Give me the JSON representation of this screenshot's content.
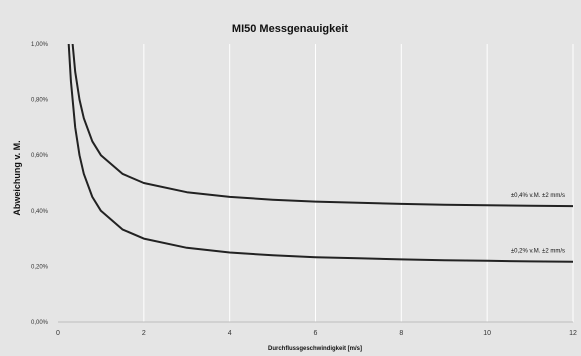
{
  "chart_data": {
    "type": "line",
    "title": "MI50 Messgenauigkeit",
    "xlabel": "Durchflussgeschwindigkeit [m/s]",
    "ylabel": "Abweichung v. M.",
    "xlim": [
      0,
      12
    ],
    "ylim": [
      0,
      1.0
    ],
    "x_ticks": [
      0,
      2,
      4,
      6,
      8,
      10,
      12
    ],
    "x_tick_labels": [
      "0",
      "2",
      "4",
      "6",
      "8",
      "10",
      "12"
    ],
    "y_ticks": [
      0,
      0.2,
      0.4,
      0.6,
      0.8,
      1.0
    ],
    "y_tick_labels": [
      "0,00%",
      "0,20%",
      "0,40%",
      "0,60%",
      "0,80%",
      "1,00%"
    ],
    "grid": "vertical",
    "series": [
      {
        "name": "±0,4% v.M. ±2 mm/s",
        "label": "±0,4% v.M. ±2 mm/s",
        "color": "#222222",
        "x": [
          0.25,
          0.3,
          0.4,
          0.5,
          0.6,
          0.8,
          1.0,
          1.5,
          2,
          3,
          4,
          5,
          6,
          7,
          8,
          9,
          10,
          11,
          12
        ],
        "y": [
          1.2,
          1.067,
          0.9,
          0.8,
          0.733,
          0.65,
          0.6,
          0.533,
          0.5,
          0.467,
          0.45,
          0.44,
          0.433,
          0.429,
          0.425,
          0.422,
          0.42,
          0.418,
          0.417
        ]
      },
      {
        "name": "±0,2% v.M. ±2 mm/s",
        "label": "±0,2% v.M. ±2 mm/s",
        "color": "#222222",
        "x": [
          0.2,
          0.25,
          0.3,
          0.4,
          0.5,
          0.6,
          0.8,
          1.0,
          1.5,
          2,
          3,
          4,
          5,
          6,
          7,
          8,
          9,
          10,
          11,
          12
        ],
        "y": [
          1.2,
          1.0,
          0.867,
          0.7,
          0.6,
          0.533,
          0.45,
          0.4,
          0.333,
          0.3,
          0.267,
          0.25,
          0.24,
          0.233,
          0.229,
          0.225,
          0.222,
          0.22,
          0.218,
          0.217
        ]
      }
    ]
  }
}
